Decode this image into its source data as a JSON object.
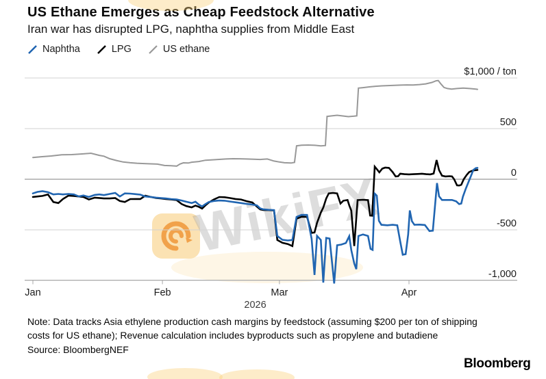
{
  "title": "US Ethane Emerges as Cheap Feedstock Alternative",
  "subtitle": "Iran war has disrupted LPG, naphtha supplies from Middle East",
  "legend": [
    {
      "label": "Naphtha",
      "color": "#2065b1"
    },
    {
      "label": "LPG",
      "color": "#000000"
    },
    {
      "label": "US ethane",
      "color": "#989898"
    }
  ],
  "watermark": {
    "text": "WikiFX"
  },
  "footer": {
    "note_line1": "Note: Data tracks Asia ethylene production cash margins by feedstock (assuming $200 per ton of shipping",
    "note_line2": "costs for US ethane); Revenue calculation includes byproducts such as propylene and butadiene",
    "source": "Source: BloombergNEF",
    "brand": "Bloomberg"
  },
  "chart_data": {
    "type": "line",
    "title": "Asia ethylene production cash margins by feedstock",
    "unit": "$ / ton",
    "grid": true,
    "legend_position": "top-left",
    "y_axis": {
      "range": [
        -1050,
        1000
      ],
      "ticks": [
        {
          "value": 1000,
          "label": "$1,000 / ton"
        },
        {
          "value": 500,
          "label": "500"
        },
        {
          "value": 0,
          "label": "0"
        },
        {
          "value": -500,
          "label": "-500"
        },
        {
          "value": -1000,
          "label": "-1,000"
        }
      ]
    },
    "x_axis": {
      "year_label": "2026",
      "day_range": [
        0,
        106.4
      ],
      "ticks": [
        {
          "label": "Jan",
          "day": 0
        },
        {
          "label": "Feb",
          "day": 31
        },
        {
          "label": "Mar",
          "day": 59
        },
        {
          "label": "Apr",
          "day": 90
        }
      ]
    },
    "series": [
      {
        "name": "US ethane",
        "color": "#989898",
        "width": 2,
        "points": [
          [
            0,
            215
          ],
          [
            2,
            222
          ],
          [
            4.4,
            230
          ],
          [
            6.9,
            242
          ],
          [
            9.3,
            243
          ],
          [
            11.8,
            250
          ],
          [
            13.9,
            257
          ],
          [
            15.9,
            236
          ],
          [
            17,
            228
          ],
          [
            18.4,
            203
          ],
          [
            20,
            185
          ],
          [
            21.6,
            170
          ],
          [
            23.3,
            163
          ],
          [
            24.9,
            158
          ],
          [
            26.6,
            155
          ],
          [
            28.2,
            152
          ],
          [
            29.8,
            149
          ],
          [
            31.5,
            136
          ],
          [
            33.1,
            133
          ],
          [
            34.4,
            130
          ],
          [
            35.2,
            150
          ],
          [
            36,
            162
          ],
          [
            37.2,
            160
          ],
          [
            38,
            168
          ],
          [
            39.7,
            175
          ],
          [
            41.3,
            188
          ],
          [
            43,
            192
          ],
          [
            44.6,
            196
          ],
          [
            46.2,
            200
          ],
          [
            47.9,
            203
          ],
          [
            49.5,
            202
          ],
          [
            51.1,
            200
          ],
          [
            52.8,
            198
          ],
          [
            54.4,
            195
          ],
          [
            56.1,
            200
          ],
          [
            57.7,
            180
          ],
          [
            59,
            170
          ],
          [
            60.2,
            163
          ],
          [
            61.8,
            160
          ],
          [
            62.6,
            166
          ],
          [
            63.1,
            330
          ],
          [
            64.3,
            336
          ],
          [
            65.9,
            338
          ],
          [
            67.5,
            335
          ],
          [
            68.9,
            330
          ],
          [
            70,
            333
          ],
          [
            70.4,
            620
          ],
          [
            71.5,
            626
          ],
          [
            72.8,
            632
          ],
          [
            74,
            626
          ],
          [
            75.5,
            618
          ],
          [
            76.9,
            623
          ],
          [
            77.5,
            626
          ],
          [
            77.9,
            900
          ],
          [
            79,
            905
          ],
          [
            80.5,
            912
          ],
          [
            82,
            918
          ],
          [
            83.5,
            922
          ],
          [
            85,
            925
          ],
          [
            86.5,
            928
          ],
          [
            88,
            930
          ],
          [
            89.5,
            932
          ],
          [
            91,
            931
          ],
          [
            92.5,
            935
          ],
          [
            94,
            942
          ],
          [
            95.5,
            956
          ],
          [
            96.5,
            972
          ],
          [
            97,
            975
          ],
          [
            97.7,
            938
          ],
          [
            98.4,
            906
          ],
          [
            99.2,
            896
          ],
          [
            100.2,
            890
          ],
          [
            101.5,
            896
          ],
          [
            103,
            900
          ],
          [
            104.5,
            896
          ],
          [
            106,
            890
          ],
          [
            106.4,
            888
          ]
        ]
      },
      {
        "name": "LPG",
        "color": "#000000",
        "width": 2.6,
        "points": [
          [
            0,
            -175
          ],
          [
            1.1,
            -170
          ],
          [
            2.3,
            -165
          ],
          [
            3.6,
            -150
          ],
          [
            4.9,
            -225
          ],
          [
            6.1,
            -235
          ],
          [
            7.2,
            -195
          ],
          [
            8.5,
            -162
          ],
          [
            9.8,
            -165
          ],
          [
            11,
            -170
          ],
          [
            12.1,
            -175
          ],
          [
            13.4,
            -200
          ],
          [
            14.8,
            -182
          ],
          [
            15.9,
            -185
          ],
          [
            17,
            -190
          ],
          [
            18.4,
            -190
          ],
          [
            19.7,
            -186
          ],
          [
            20.8,
            -215
          ],
          [
            22,
            -225
          ],
          [
            23.3,
            -196
          ],
          [
            24.6,
            -195
          ],
          [
            25.7,
            -195
          ],
          [
            26.9,
            -162
          ],
          [
            28.2,
            -175
          ],
          [
            29.5,
            -185
          ],
          [
            30.7,
            -190
          ],
          [
            31.8,
            -195
          ],
          [
            33.1,
            -200
          ],
          [
            34.4,
            -206
          ],
          [
            35.6,
            -245
          ],
          [
            36.7,
            -265
          ],
          [
            38,
            -278
          ],
          [
            38.9,
            -260
          ],
          [
            39.7,
            -272
          ],
          [
            40.5,
            -290
          ],
          [
            41.3,
            -258
          ],
          [
            42.1,
            -230
          ],
          [
            43.3,
            -200
          ],
          [
            44.6,
            -176
          ],
          [
            45.9,
            -178
          ],
          [
            47.2,
            -186
          ],
          [
            48.5,
            -195
          ],
          [
            49.8,
            -200
          ],
          [
            51.1,
            -216
          ],
          [
            52.5,
            -230
          ],
          [
            53.6,
            -270
          ],
          [
            54.4,
            -298
          ],
          [
            55.2,
            -305
          ],
          [
            56.4,
            -305
          ],
          [
            57.7,
            -308
          ],
          [
            58.5,
            -600
          ],
          [
            59.7,
            -628
          ],
          [
            61,
            -640
          ],
          [
            62.1,
            -660
          ],
          [
            63.1,
            -390
          ],
          [
            64.3,
            -370
          ],
          [
            65.6,
            -372
          ],
          [
            66.7,
            -530
          ],
          [
            67.4,
            -526
          ],
          [
            68,
            -430
          ],
          [
            68.9,
            -330
          ],
          [
            69.5,
            -280
          ],
          [
            70.2,
            -190
          ],
          [
            70.8,
            -140
          ],
          [
            71.8,
            -135
          ],
          [
            72.8,
            -140
          ],
          [
            73.6,
            -240
          ],
          [
            74.3,
            -212
          ],
          [
            75.3,
            -205
          ],
          [
            75.7,
            -258
          ],
          [
            76.2,
            -310
          ],
          [
            76.9,
            -660
          ],
          [
            77.7,
            -206
          ],
          [
            79,
            -203
          ],
          [
            80.2,
            -206
          ],
          [
            80.7,
            -358
          ],
          [
            81.2,
            -360
          ],
          [
            81.8,
            125
          ],
          [
            82.4,
            95
          ],
          [
            82.9,
            68
          ],
          [
            83.6,
            105
          ],
          [
            84.3,
            115
          ],
          [
            85.2,
            112
          ],
          [
            86.1,
            70
          ],
          [
            86.8,
            28
          ],
          [
            87.4,
            30
          ],
          [
            87.9,
            55
          ],
          [
            88.9,
            50
          ],
          [
            90,
            48
          ],
          [
            91.1,
            50
          ],
          [
            92.1,
            52
          ],
          [
            93.1,
            55
          ],
          [
            94.1,
            50
          ],
          [
            95.1,
            48
          ],
          [
            95.9,
            56
          ],
          [
            96.6,
            190
          ],
          [
            97.2,
            90
          ],
          [
            97.9,
            35
          ],
          [
            98.7,
            28
          ],
          [
            99.7,
            30
          ],
          [
            100.3,
            28
          ],
          [
            100.8,
            0
          ],
          [
            101.5,
            -60
          ],
          [
            102,
            -62
          ],
          [
            102.5,
            -55
          ],
          [
            103.1,
            0
          ],
          [
            103.8,
            42
          ],
          [
            104.4,
            70
          ],
          [
            105,
            82
          ],
          [
            105.6,
            88
          ],
          [
            106.4,
            92
          ]
        ]
      },
      {
        "name": "Naphtha",
        "color": "#2065b1",
        "width": 2.6,
        "points": [
          [
            0,
            -140
          ],
          [
            1.1,
            -125
          ],
          [
            2.3,
            -118
          ],
          [
            3.6,
            -128
          ],
          [
            4.9,
            -150
          ],
          [
            6.1,
            -145
          ],
          [
            7.2,
            -150
          ],
          [
            8.5,
            -145
          ],
          [
            9.8,
            -150
          ],
          [
            11,
            -170
          ],
          [
            12.1,
            -160
          ],
          [
            13.4,
            -175
          ],
          [
            14.8,
            -155
          ],
          [
            15.9,
            -150
          ],
          [
            17,
            -157
          ],
          [
            18.4,
            -145
          ],
          [
            19.7,
            -135
          ],
          [
            20.8,
            -170
          ],
          [
            22,
            -140
          ],
          [
            23.3,
            -142
          ],
          [
            24.6,
            -147
          ],
          [
            25.7,
            -152
          ],
          [
            26.9,
            -170
          ],
          [
            28.2,
            -175
          ],
          [
            29.5,
            -182
          ],
          [
            30.7,
            -186
          ],
          [
            31.8,
            -190
          ],
          [
            33.1,
            -196
          ],
          [
            34.4,
            -200
          ],
          [
            35.6,
            -210
          ],
          [
            36.7,
            -222
          ],
          [
            38,
            -235
          ],
          [
            38.9,
            -222
          ],
          [
            39.7,
            -250
          ],
          [
            40.5,
            -268
          ],
          [
            41.3,
            -245
          ],
          [
            42.1,
            -225
          ],
          [
            43.3,
            -215
          ],
          [
            44.6,
            -210
          ],
          [
            45.9,
            -212
          ],
          [
            47.2,
            -220
          ],
          [
            48.5,
            -228
          ],
          [
            49.8,
            -235
          ],
          [
            51.1,
            -243
          ],
          [
            52.5,
            -250
          ],
          [
            53.6,
            -258
          ],
          [
            54.4,
            -288
          ],
          [
            55.2,
            -298
          ],
          [
            56.4,
            -302
          ],
          [
            57.7,
            -305
          ],
          [
            58.5,
            -560
          ],
          [
            59.7,
            -598
          ],
          [
            61,
            -605
          ],
          [
            62.1,
            -600
          ],
          [
            63.1,
            -372
          ],
          [
            64.3,
            -352
          ],
          [
            65.6,
            -353
          ],
          [
            66.7,
            -590
          ],
          [
            67.4,
            -945
          ],
          [
            68,
            -560
          ],
          [
            68.9,
            -600
          ],
          [
            69.5,
            -1020
          ],
          [
            70.2,
            -580
          ],
          [
            71,
            -586
          ],
          [
            71.6,
            -830
          ],
          [
            72.1,
            -1030
          ],
          [
            72.8,
            -652
          ],
          [
            73.8,
            -645
          ],
          [
            74.9,
            -630
          ],
          [
            75.7,
            -562
          ],
          [
            76.2,
            -700
          ],
          [
            76.9,
            -832
          ],
          [
            77.4,
            -888
          ],
          [
            77.9,
            -560
          ],
          [
            79,
            -545
          ],
          [
            80.2,
            -560
          ],
          [
            80.8,
            -688
          ],
          [
            81.3,
            -698
          ],
          [
            81.8,
            -142
          ],
          [
            82.3,
            -162
          ],
          [
            82.8,
            -410
          ],
          [
            83.4,
            -450
          ],
          [
            84.8,
            -455
          ],
          [
            86.1,
            -450
          ],
          [
            87.2,
            -455
          ],
          [
            87.9,
            -615
          ],
          [
            88.5,
            -745
          ],
          [
            89.2,
            -740
          ],
          [
            89.8,
            -545
          ],
          [
            90.2,
            -308
          ],
          [
            90.7,
            -415
          ],
          [
            91.3,
            -450
          ],
          [
            92.5,
            -448
          ],
          [
            93.8,
            -452
          ],
          [
            94.9,
            -512
          ],
          [
            95.7,
            -508
          ],
          [
            96.7,
            -38
          ],
          [
            97.2,
            -168
          ],
          [
            97.9,
            -205
          ],
          [
            99,
            -205
          ],
          [
            100.3,
            -205
          ],
          [
            101.3,
            -218
          ],
          [
            102,
            -245
          ],
          [
            102.5,
            -240
          ],
          [
            102.9,
            -172
          ],
          [
            103.6,
            -92
          ],
          [
            104.3,
            -22
          ],
          [
            104.9,
            40
          ],
          [
            105.4,
            92
          ],
          [
            106,
            110
          ],
          [
            106.4,
            112
          ]
        ]
      }
    ]
  }
}
